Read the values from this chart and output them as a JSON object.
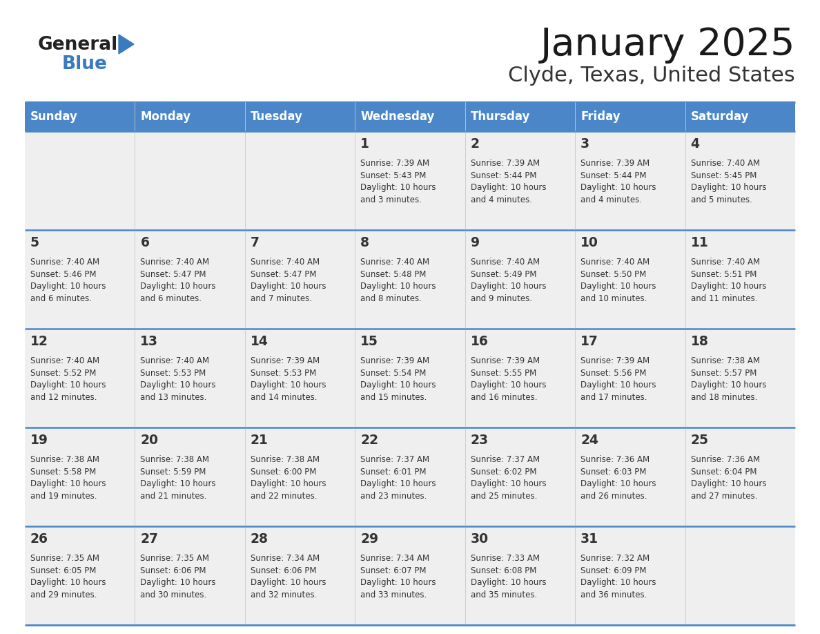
{
  "title": "January 2025",
  "subtitle": "Clyde, Texas, United States",
  "header_bg": "#4a86c8",
  "header_text": "#ffffff",
  "cell_bg_light": "#efefef",
  "cell_bg_white": "#ffffff",
  "cell_text": "#333333",
  "border_color": "#4a86c8",
  "days_of_week": [
    "Sunday",
    "Monday",
    "Tuesday",
    "Wednesday",
    "Thursday",
    "Friday",
    "Saturday"
  ],
  "calendar": [
    [
      {
        "day": "",
        "info": ""
      },
      {
        "day": "",
        "info": ""
      },
      {
        "day": "",
        "info": ""
      },
      {
        "day": "1",
        "info": "Sunrise: 7:39 AM\nSunset: 5:43 PM\nDaylight: 10 hours\nand 3 minutes."
      },
      {
        "day": "2",
        "info": "Sunrise: 7:39 AM\nSunset: 5:44 PM\nDaylight: 10 hours\nand 4 minutes."
      },
      {
        "day": "3",
        "info": "Sunrise: 7:39 AM\nSunset: 5:44 PM\nDaylight: 10 hours\nand 4 minutes."
      },
      {
        "day": "4",
        "info": "Sunrise: 7:40 AM\nSunset: 5:45 PM\nDaylight: 10 hours\nand 5 minutes."
      }
    ],
    [
      {
        "day": "5",
        "info": "Sunrise: 7:40 AM\nSunset: 5:46 PM\nDaylight: 10 hours\nand 6 minutes."
      },
      {
        "day": "6",
        "info": "Sunrise: 7:40 AM\nSunset: 5:47 PM\nDaylight: 10 hours\nand 6 minutes."
      },
      {
        "day": "7",
        "info": "Sunrise: 7:40 AM\nSunset: 5:47 PM\nDaylight: 10 hours\nand 7 minutes."
      },
      {
        "day": "8",
        "info": "Sunrise: 7:40 AM\nSunset: 5:48 PM\nDaylight: 10 hours\nand 8 minutes."
      },
      {
        "day": "9",
        "info": "Sunrise: 7:40 AM\nSunset: 5:49 PM\nDaylight: 10 hours\nand 9 minutes."
      },
      {
        "day": "10",
        "info": "Sunrise: 7:40 AM\nSunset: 5:50 PM\nDaylight: 10 hours\nand 10 minutes."
      },
      {
        "day": "11",
        "info": "Sunrise: 7:40 AM\nSunset: 5:51 PM\nDaylight: 10 hours\nand 11 minutes."
      }
    ],
    [
      {
        "day": "12",
        "info": "Sunrise: 7:40 AM\nSunset: 5:52 PM\nDaylight: 10 hours\nand 12 minutes."
      },
      {
        "day": "13",
        "info": "Sunrise: 7:40 AM\nSunset: 5:53 PM\nDaylight: 10 hours\nand 13 minutes."
      },
      {
        "day": "14",
        "info": "Sunrise: 7:39 AM\nSunset: 5:53 PM\nDaylight: 10 hours\nand 14 minutes."
      },
      {
        "day": "15",
        "info": "Sunrise: 7:39 AM\nSunset: 5:54 PM\nDaylight: 10 hours\nand 15 minutes."
      },
      {
        "day": "16",
        "info": "Sunrise: 7:39 AM\nSunset: 5:55 PM\nDaylight: 10 hours\nand 16 minutes."
      },
      {
        "day": "17",
        "info": "Sunrise: 7:39 AM\nSunset: 5:56 PM\nDaylight: 10 hours\nand 17 minutes."
      },
      {
        "day": "18",
        "info": "Sunrise: 7:38 AM\nSunset: 5:57 PM\nDaylight: 10 hours\nand 18 minutes."
      }
    ],
    [
      {
        "day": "19",
        "info": "Sunrise: 7:38 AM\nSunset: 5:58 PM\nDaylight: 10 hours\nand 19 minutes."
      },
      {
        "day": "20",
        "info": "Sunrise: 7:38 AM\nSunset: 5:59 PM\nDaylight: 10 hours\nand 21 minutes."
      },
      {
        "day": "21",
        "info": "Sunrise: 7:38 AM\nSunset: 6:00 PM\nDaylight: 10 hours\nand 22 minutes."
      },
      {
        "day": "22",
        "info": "Sunrise: 7:37 AM\nSunset: 6:01 PM\nDaylight: 10 hours\nand 23 minutes."
      },
      {
        "day": "23",
        "info": "Sunrise: 7:37 AM\nSunset: 6:02 PM\nDaylight: 10 hours\nand 25 minutes."
      },
      {
        "day": "24",
        "info": "Sunrise: 7:36 AM\nSunset: 6:03 PM\nDaylight: 10 hours\nand 26 minutes."
      },
      {
        "day": "25",
        "info": "Sunrise: 7:36 AM\nSunset: 6:04 PM\nDaylight: 10 hours\nand 27 minutes."
      }
    ],
    [
      {
        "day": "26",
        "info": "Sunrise: 7:35 AM\nSunset: 6:05 PM\nDaylight: 10 hours\nand 29 minutes."
      },
      {
        "day": "27",
        "info": "Sunrise: 7:35 AM\nSunset: 6:06 PM\nDaylight: 10 hours\nand 30 minutes."
      },
      {
        "day": "28",
        "info": "Sunrise: 7:34 AM\nSunset: 6:06 PM\nDaylight: 10 hours\nand 32 minutes."
      },
      {
        "day": "29",
        "info": "Sunrise: 7:34 AM\nSunset: 6:07 PM\nDaylight: 10 hours\nand 33 minutes."
      },
      {
        "day": "30",
        "info": "Sunrise: 7:33 AM\nSunset: 6:08 PM\nDaylight: 10 hours\nand 35 minutes."
      },
      {
        "day": "31",
        "info": "Sunrise: 7:32 AM\nSunset: 6:09 PM\nDaylight: 10 hours\nand 36 minutes."
      },
      {
        "day": "",
        "info": ""
      }
    ]
  ],
  "logo_general_color": "#222222",
  "logo_blue_color": "#3a7abf",
  "logo_triangle_color": "#3a7abf"
}
